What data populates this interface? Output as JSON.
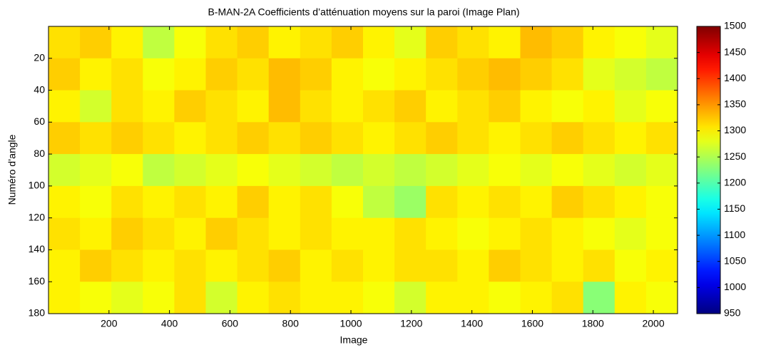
{
  "chart_data": {
    "type": "heatmap",
    "title": "B-MAN-2A Coefficients d’atténuation moyens sur la paroi (Image Plan)",
    "x_label": "Image",
    "y_label": "Numéro d’angle",
    "xbins": [
      0,
      104,
      208,
      312,
      416,
      520,
      624,
      728,
      832,
      936,
      1040,
      1144,
      1248,
      1352,
      1456,
      1560,
      1664,
      1768,
      1872,
      1976,
      2080
    ],
    "ybins": [
      0,
      20,
      40,
      60,
      80,
      100,
      120,
      140,
      160,
      180
    ],
    "z": [
      [
        1310,
        1320,
        1300,
        1260,
        1290,
        1310,
        1320,
        1300,
        1310,
        1320,
        1300,
        1280,
        1320,
        1310,
        1300,
        1330,
        1320,
        1300,
        1290,
        1280
      ],
      [
        1320,
        1300,
        1310,
        1290,
        1300,
        1320,
        1310,
        1330,
        1320,
        1300,
        1290,
        1300,
        1310,
        1320,
        1330,
        1320,
        1310,
        1280,
        1270,
        1260
      ],
      [
        1300,
        1270,
        1310,
        1300,
        1320,
        1310,
        1300,
        1330,
        1310,
        1300,
        1310,
        1320,
        1300,
        1310,
        1320,
        1300,
        1290,
        1300,
        1280,
        1290
      ],
      [
        1320,
        1310,
        1320,
        1310,
        1300,
        1310,
        1320,
        1310,
        1320,
        1310,
        1300,
        1310,
        1320,
        1310,
        1300,
        1310,
        1320,
        1310,
        1300,
        1310
      ],
      [
        1270,
        1280,
        1290,
        1260,
        1270,
        1280,
        1290,
        1280,
        1270,
        1260,
        1270,
        1260,
        1270,
        1280,
        1290,
        1280,
        1290,
        1280,
        1270,
        1280
      ],
      [
        1300,
        1290,
        1310,
        1300,
        1310,
        1300,
        1320,
        1300,
        1310,
        1290,
        1260,
        1240,
        1310,
        1300,
        1310,
        1300,
        1320,
        1310,
        1300,
        1290
      ],
      [
        1310,
        1300,
        1320,
        1310,
        1300,
        1320,
        1310,
        1300,
        1310,
        1300,
        1300,
        1310,
        1300,
        1290,
        1300,
        1310,
        1300,
        1290,
        1280,
        1290
      ],
      [
        1300,
        1320,
        1310,
        1300,
        1310,
        1300,
        1310,
        1320,
        1300,
        1310,
        1300,
        1310,
        1310,
        1300,
        1320,
        1310,
        1300,
        1310,
        1290,
        1300
      ],
      [
        1300,
        1290,
        1280,
        1290,
        1310,
        1270,
        1300,
        1310,
        1300,
        1300,
        1290,
        1270,
        1300,
        1300,
        1290,
        1300,
        1310,
        1230,
        1300,
        1290
      ]
    ],
    "xlim": [
      0,
      2080
    ],
    "ylim": [
      0,
      180
    ],
    "y_reversed": true,
    "xticks": [
      200,
      400,
      600,
      800,
      1000,
      1200,
      1400,
      1600,
      1800,
      2000
    ],
    "yticks": [
      20,
      40,
      60,
      80,
      100,
      120,
      140,
      160,
      180
    ],
    "colormap": "jet",
    "clim": [
      950,
      1500
    ],
    "cticks": [
      950,
      1000,
      1050,
      1100,
      1150,
      1200,
      1250,
      1300,
      1350,
      1400,
      1450,
      1500
    ]
  }
}
